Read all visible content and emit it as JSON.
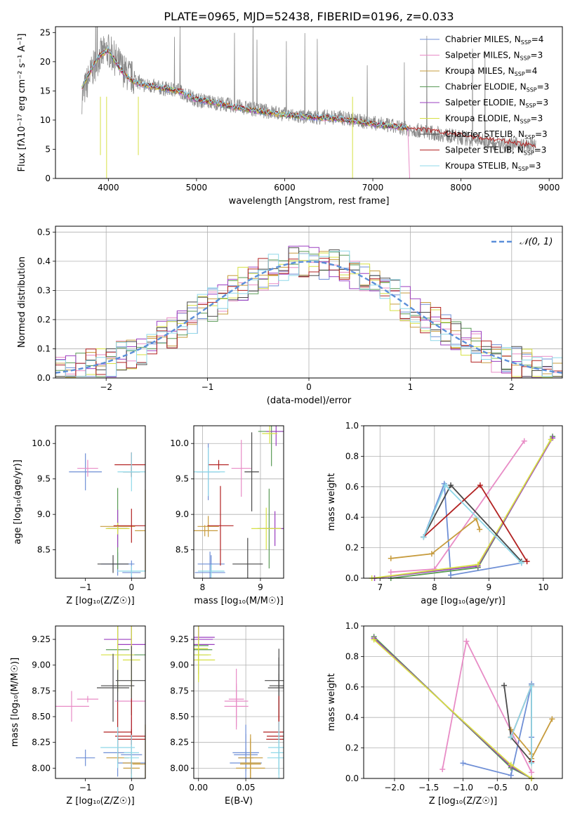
{
  "figure": {
    "title": "PLATE=0965, MJD=52438, FIBERID=0196, z=0.033",
    "model_colors": [
      "#6f8fd6",
      "#e88cc6",
      "#c79c3e",
      "#5a9a56",
      "#9b3fc0",
      "#d6e044",
      "#4a4a4a",
      "#b22222",
      "#8fd8e8"
    ],
    "model_labels": [
      "Chabrier MILES, N_SSP=4",
      "Salpeter MILES, N_SSP=3",
      "Kroupa MILES, N_SSP=4",
      "Chabrier ELODIE, N_SSP=3",
      "Salpeter ELODIE, N_SSP=3",
      "Kroupa ELODIE, N_SSP=3",
      "Chabrier STELIB, N_SSP=3",
      "Salpeter STELIB, N_SSP=3",
      "Kroupa STELIB, N_SSP=3"
    ]
  },
  "chart_data": [
    {
      "id": "spectrum",
      "type": "line",
      "title": "PLATE=0965, MJD=52438, FIBERID=0196, z=0.033",
      "xlabel": "wavelength [Angstrom, rest frame]",
      "ylabel": "Flux [fλ10⁻¹⁷ erg cm⁻² s⁻¹ A⁻¹]",
      "xlim": [
        3400,
        9150
      ],
      "ylim": [
        0,
        26
      ],
      "xticks": [
        4000,
        5000,
        6000,
        7000,
        8000,
        9000
      ],
      "yticks": [
        0,
        5,
        10,
        15,
        20,
        25
      ],
      "grid": false,
      "legend": "top-right",
      "data_color": "#8c8c8c",
      "data": {
        "x": [
          3700,
          3800,
          3900,
          4000,
          4100,
          4200,
          4300,
          4400,
          4600,
          4800,
          5000,
          5200,
          5400,
          5600,
          5800,
          6000,
          6200,
          6400,
          6600,
          6800,
          7000,
          7200,
          7400,
          7600,
          7800,
          8000,
          8200,
          8400,
          8600,
          8850
        ],
        "y": [
          14,
          18,
          21,
          22,
          20,
          18,
          17,
          16,
          15.5,
          15,
          13.5,
          13,
          12.5,
          12,
          11.5,
          11,
          10.5,
          10.5,
          10.5,
          10,
          9.5,
          9,
          8.5,
          8,
          7.5,
          7,
          6.5,
          6,
          5.8,
          5.5
        ]
      },
      "model": {
        "x": [
          3700,
          3800,
          3900,
          4000,
          4100,
          4200,
          4300,
          4400,
          4600,
          4800,
          5000,
          5200,
          5400,
          5600,
          5800,
          6000,
          6200,
          6400,
          6600,
          6800,
          7000,
          7200,
          7400
        ],
        "y": [
          15.5,
          18.5,
          21,
          22,
          19.5,
          17.5,
          16.5,
          16,
          15.5,
          15,
          13.5,
          13,
          12.3,
          11.8,
          11.3,
          10.9,
          10.6,
          10.4,
          10.2,
          9.8,
          9.3,
          9.0,
          8.6
        ]
      }
    },
    {
      "id": "residual-hist",
      "type": "line",
      "xlabel": "(data-model)/error",
      "ylabel": "Normed distribution",
      "xlim": [
        -2.5,
        2.5
      ],
      "ylim": [
        0,
        0.52
      ],
      "xticks": [
        -2,
        -1,
        0,
        1,
        2
      ],
      "yticks": [
        0.0,
        0.1,
        0.2,
        0.3,
        0.4,
        0.5
      ],
      "grid": true,
      "legend": "top-right",
      "curve_label": "𝒩(0, 1)",
      "curve_color": "#5b8fd9"
    },
    {
      "id": "age-vs-Z",
      "type": "scatter",
      "xlabel": "Z [log₁₀(Z/Z☉)]",
      "ylabel": "age  [log₁₀(age/yr)]",
      "xlim": [
        -1.65,
        0.3
      ],
      "ylim": [
        8.1,
        10.25
      ],
      "xticks": [
        -1,
        0
      ],
      "yticks": [
        8.5,
        9.0,
        9.5,
        10.0
      ],
      "grid": false
    },
    {
      "id": "age-vs-mass",
      "type": "scatter",
      "xlabel": "mass [log₁₀(M/M☉)]",
      "ylabel": "",
      "xlim": [
        7.85,
        9.4
      ],
      "ylim": [
        8.1,
        10.25
      ],
      "xticks": [
        8,
        9
      ],
      "yticks": [
        8.5,
        9.0,
        9.5,
        10.0
      ],
      "grid": true
    },
    {
      "id": "mass-weight-vs-age",
      "type": "line",
      "xlabel": "age  [log₁₀(age/yr)]",
      "ylabel": "mass weight",
      "xlim": [
        6.7,
        10.35
      ],
      "ylim": [
        0,
        1
      ],
      "xticks": [
        7,
        8,
        9,
        10
      ],
      "yticks": [
        0.0,
        0.2,
        0.4,
        0.6,
        0.8,
        1.0
      ],
      "grid": true
    },
    {
      "id": "mass-vs-Z",
      "type": "scatter",
      "xlabel": "Z [log₁₀(Z/Z☉)]",
      "ylabel": "mass [log₁₀(M/M☉)]",
      "xlim": [
        -1.65,
        0.3
      ],
      "ylim": [
        7.9,
        9.38
      ],
      "xticks": [
        -1,
        0
      ],
      "yticks": [
        8.0,
        8.25,
        8.5,
        8.75,
        9.0,
        9.25
      ],
      "grid": false
    },
    {
      "id": "mass-vs-EBV",
      "type": "scatter",
      "xlabel": "E(B-V)",
      "ylabel": "",
      "xlim": [
        -0.005,
        0.09
      ],
      "ylim": [
        7.9,
        9.38
      ],
      "xticks": [
        0.0,
        0.05
      ],
      "yticks": [
        8.0,
        8.25,
        8.5,
        8.75,
        9.0,
        9.25
      ],
      "grid": true
    },
    {
      "id": "mass-weight-vs-Z",
      "type": "line",
      "xlabel": "Z [log₁₀(Z/Z☉)]",
      "ylabel": "mass weight",
      "xlim": [
        -2.45,
        0.45
      ],
      "ylim": [
        0,
        1
      ],
      "xticks": [
        -2.0,
        -1.5,
        -1.0,
        -0.5,
        0.0
      ],
      "yticks": [
        0.0,
        0.2,
        0.4,
        0.6,
        0.8,
        1.0
      ],
      "grid": true
    }
  ],
  "ssp_fits": [
    {
      "model": 0,
      "ssp": [
        {
          "Z": 0.0,
          "age": 8.18,
          "mass": 8.13,
          "ebv": 0.05,
          "mw": 0.62
        },
        {
          "Z": 0.0,
          "age": 7.8,
          "mass": 8.05,
          "ebv": 0.05,
          "mw": 0.27
        },
        {
          "Z": -1.0,
          "age": 9.6,
          "mass": 8.1,
          "ebv": 0.05,
          "mw": 0.1
        },
        {
          "Z": -0.3,
          "age": 8.3,
          "mass": 8.15,
          "ebv": 0.05,
          "mw": 0.02
        }
      ]
    },
    {
      "model": 1,
      "ssp": [
        {
          "Z": -0.95,
          "age": 9.65,
          "mass": 8.67,
          "ebv": 0.04,
          "mw": 0.9
        },
        {
          "Z": -1.3,
          "age": 8.0,
          "mass": 8.6,
          "ebv": 0.04,
          "mw": 0.06
        },
        {
          "Z": 0.0,
          "age": 7.2,
          "mass": 8.65,
          "ebv": 0.04,
          "mw": 0.04
        }
      ]
    },
    {
      "model": 2,
      "ssp": [
        {
          "Z": 0.3,
          "age": 8.77,
          "mass": 8.04,
          "ebv": 0.055,
          "mw": 0.39
        },
        {
          "Z": -0.3,
          "age": 8.83,
          "mass": 8.1,
          "ebv": 0.055,
          "mw": 0.32
        },
        {
          "Z": 0.0,
          "age": 7.95,
          "mass": 8.0,
          "ebv": 0.055,
          "mw": 0.16
        },
        {
          "Z": 0.0,
          "age": 7.2,
          "mass": 8.05,
          "ebv": 0.055,
          "mw": 0.13
        }
      ]
    },
    {
      "model": 3,
      "ssp": [
        {
          "Z": -2.3,
          "age": 10.17,
          "mass": 9.19,
          "ebv": 0.0,
          "mw": 0.93
        },
        {
          "Z": -0.3,
          "age": 8.8,
          "mass": 9.15,
          "ebv": 0.0,
          "mw": 0.07
        },
        {
          "Z": 0.0,
          "age": 7.2,
          "mass": 9.1,
          "ebv": 0.0,
          "mw": 0.0
        }
      ]
    },
    {
      "model": 4,
      "ssp": [
        {
          "Z": -2.3,
          "age": 10.17,
          "mass": 9.27,
          "ebv": 0.0,
          "mw": 0.92
        },
        {
          "Z": -0.3,
          "age": 8.8,
          "mass": 9.25,
          "ebv": 0.0,
          "mw": 0.08
        },
        {
          "Z": 0.0,
          "age": 6.9,
          "mass": 9.2,
          "ebv": 0.0,
          "mw": 0.0
        }
      ]
    },
    {
      "model": 5,
      "ssp": [
        {
          "Z": -2.3,
          "age": 10.14,
          "mass": 9.16,
          "ebv": 0.0,
          "mw": 0.91
        },
        {
          "Z": -0.3,
          "age": 8.8,
          "mass": 9.1,
          "ebv": 0.0,
          "mw": 0.09
        },
        {
          "Z": 0.0,
          "age": 6.85,
          "mass": 9.05,
          "ebv": 0.0,
          "mw": 0.0
        }
      ]
    },
    {
      "model": 6,
      "ssp": [
        {
          "Z": -0.4,
          "age": 8.3,
          "mass": 8.78,
          "ebv": 0.085,
          "mw": 0.61
        },
        {
          "Z": 0.0,
          "age": 9.6,
          "mass": 8.85,
          "ebv": 0.085,
          "mw": 0.11
        },
        {
          "Z": -0.3,
          "age": 7.8,
          "mass": 8.8,
          "ebv": 0.085,
          "mw": 0.27
        }
      ]
    },
    {
      "model": 7,
      "ssp": [
        {
          "Z": 0.0,
          "age": 8.84,
          "mass": 8.31,
          "ebv": 0.085,
          "mw": 0.61
        },
        {
          "Z": 0.0,
          "age": 9.7,
          "mass": 8.28,
          "ebv": 0.085,
          "mw": 0.11
        },
        {
          "Z": -0.3,
          "age": 7.8,
          "mass": 8.35,
          "ebv": 0.085,
          "mw": 0.27
        }
      ]
    },
    {
      "model": 8,
      "ssp": [
        {
          "Z": 0.0,
          "age": 8.2,
          "mass": 8.15,
          "ebv": 0.085,
          "mw": 0.61
        },
        {
          "Z": 0.0,
          "age": 9.6,
          "mass": 8.1,
          "ebv": 0.085,
          "mw": 0.1
        },
        {
          "Z": -0.3,
          "age": 7.8,
          "mass": 8.2,
          "ebv": 0.085,
          "mw": 0.27
        }
      ]
    }
  ]
}
